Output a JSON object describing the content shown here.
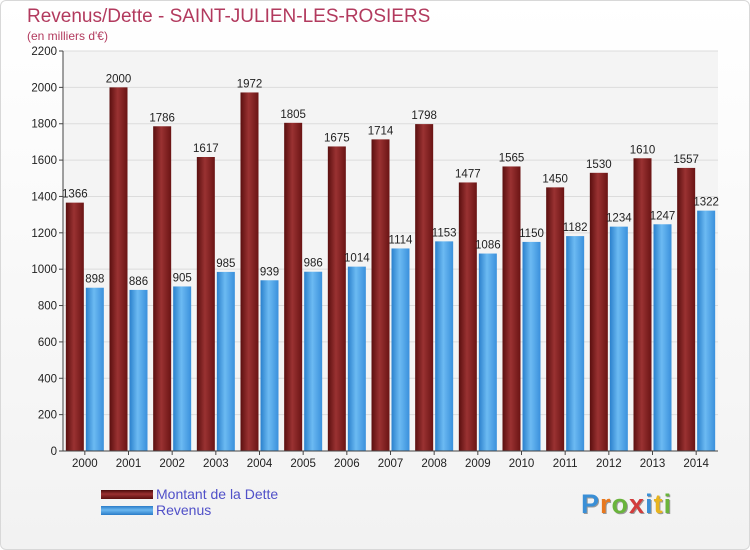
{
  "title": "Revenus/Dette - SAINT-JULIEN-LES-ROSIERS",
  "subtitle": "(en milliers d'€)",
  "colors": {
    "dette": "#7a1d1d",
    "revenus": "#3d9ae0",
    "title": "#b23a5e",
    "legend_text": "#5050c8"
  },
  "chart_data": {
    "type": "bar",
    "title": "Revenus/Dette - SAINT-JULIEN-LES-ROSIERS",
    "ylabel": "(en milliers d'€)",
    "xlabel": "",
    "ylim": [
      0,
      2200
    ],
    "ytick_step": 200,
    "grid": true,
    "legend_position": "bottom-left",
    "categories": [
      "2000",
      "2001",
      "2002",
      "2003",
      "2004",
      "2005",
      "2006",
      "2007",
      "2008",
      "2009",
      "2010",
      "2011",
      "2012",
      "2013",
      "2014"
    ],
    "series": [
      {
        "name": "Montant de la Dette",
        "values": [
          1366,
          2000,
          1786,
          1617,
          1972,
          1805,
          1675,
          1714,
          1798,
          1477,
          1565,
          1450,
          1530,
          1610,
          1557
        ]
      },
      {
        "name": "Revenus",
        "values": [
          898,
          886,
          905,
          985,
          939,
          986,
          1014,
          1114,
          1153,
          1086,
          1150,
          1182,
          1234,
          1247,
          1322
        ]
      }
    ]
  },
  "legend": {
    "dette_label": "Montant de la Dette",
    "revenus_label": "Revenus"
  },
  "logo": {
    "letters": [
      "P",
      "r",
      "o",
      "x",
      "i",
      "t",
      "i"
    ],
    "colors": [
      "#3a8fd6",
      "#e8781e",
      "#6ab43c",
      "#d23c3c",
      "#3a8fd6",
      "#e8b41e",
      "#6ab43c"
    ]
  }
}
